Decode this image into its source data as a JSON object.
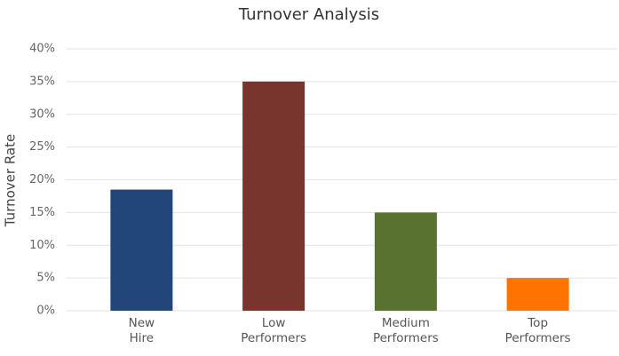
{
  "chart_data": {
    "type": "bar",
    "title": "Turnover Analysis",
    "y_label": "Turnover Rate",
    "categories": [
      "New Hire",
      "Low Performers",
      "Medium Performers",
      "Top Performers"
    ],
    "values": [
      18.5,
      35,
      15,
      5
    ],
    "colors": [
      "#22467a",
      "#78352e",
      "#5a7230",
      "#ff7300"
    ],
    "ylim": [
      0,
      40
    ],
    "yticks": [
      {
        "value": 0,
        "label": "0%"
      },
      {
        "value": 5,
        "label": "5%"
      },
      {
        "value": 10,
        "label": "10%"
      },
      {
        "value": 15,
        "label": "15%"
      },
      {
        "value": 20,
        "label": "20%"
      },
      {
        "value": 25,
        "label": "25%"
      },
      {
        "value": 30,
        "label": "30%"
      },
      {
        "value": 35,
        "label": "35%"
      },
      {
        "value": 40,
        "label": "40%"
      }
    ],
    "grid": true
  }
}
